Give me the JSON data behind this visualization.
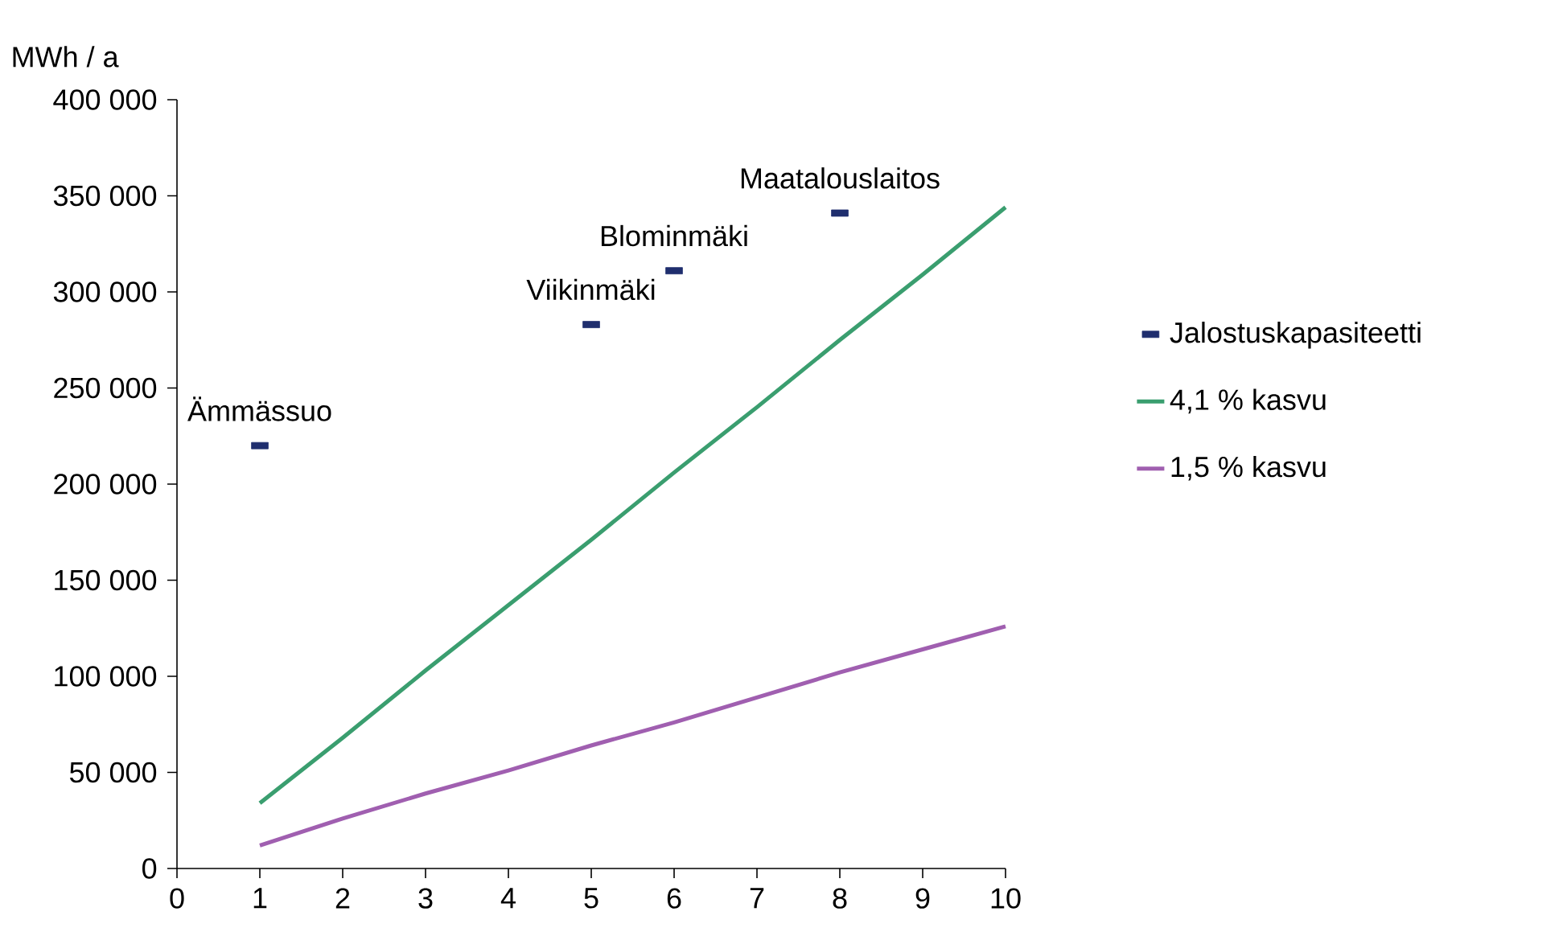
{
  "chart_data": {
    "type": "line",
    "ylabel": "MWh / a",
    "xlim": [
      0,
      10
    ],
    "xticks": [
      0,
      1,
      2,
      3,
      4,
      5,
      6,
      7,
      8,
      9,
      10
    ],
    "ylim": [
      0,
      400000
    ],
    "yticks": [
      {
        "value": 0,
        "label": "0"
      },
      {
        "value": 50000,
        "label": "50 000"
      },
      {
        "value": 100000,
        "label": "100 000"
      },
      {
        "value": 150000,
        "label": "150 000"
      },
      {
        "value": 200000,
        "label": "200 000"
      },
      {
        "value": 250000,
        "label": "250 000"
      },
      {
        "value": 300000,
        "label": "300 000"
      },
      {
        "value": 350000,
        "label": "350 000"
      },
      {
        "value": 400000,
        "label": "400 000"
      }
    ],
    "series": [
      {
        "name": "Jalostuskapasiteetti",
        "type": "scatter",
        "color": "#1f2e6e",
        "x": [
          1,
          5,
          6,
          8
        ],
        "values": [
          220000,
          283000,
          311000,
          341000
        ]
      },
      {
        "name": "4,1 % kasvu",
        "color": "#3a9e6f",
        "x": [
          1,
          2,
          3,
          4,
          5,
          6,
          7,
          8,
          9,
          10
        ],
        "values": [
          34000,
          68000,
          103000,
          137000,
          171000,
          206000,
          240000,
          275000,
          309000,
          344000
        ]
      },
      {
        "name": "1,5 % kasvu",
        "color": "#a05fb0",
        "x": [
          1,
          2,
          3,
          4,
          5,
          6,
          7,
          8,
          9,
          10
        ],
        "values": [
          12000,
          26000,
          39000,
          51000,
          64000,
          76000,
          89000,
          102000,
          114000,
          126000
        ]
      }
    ],
    "annotations": [
      {
        "text": "Ämmässuo",
        "x": 1,
        "y": 220000
      },
      {
        "text": "Viikinmäki",
        "x": 5,
        "y": 283000
      },
      {
        "text": "Blominmäki",
        "x": 6,
        "y": 311000
      },
      {
        "text": "Maatalouslaitos",
        "x": 8,
        "y": 341000
      }
    ],
    "legend": "right"
  }
}
